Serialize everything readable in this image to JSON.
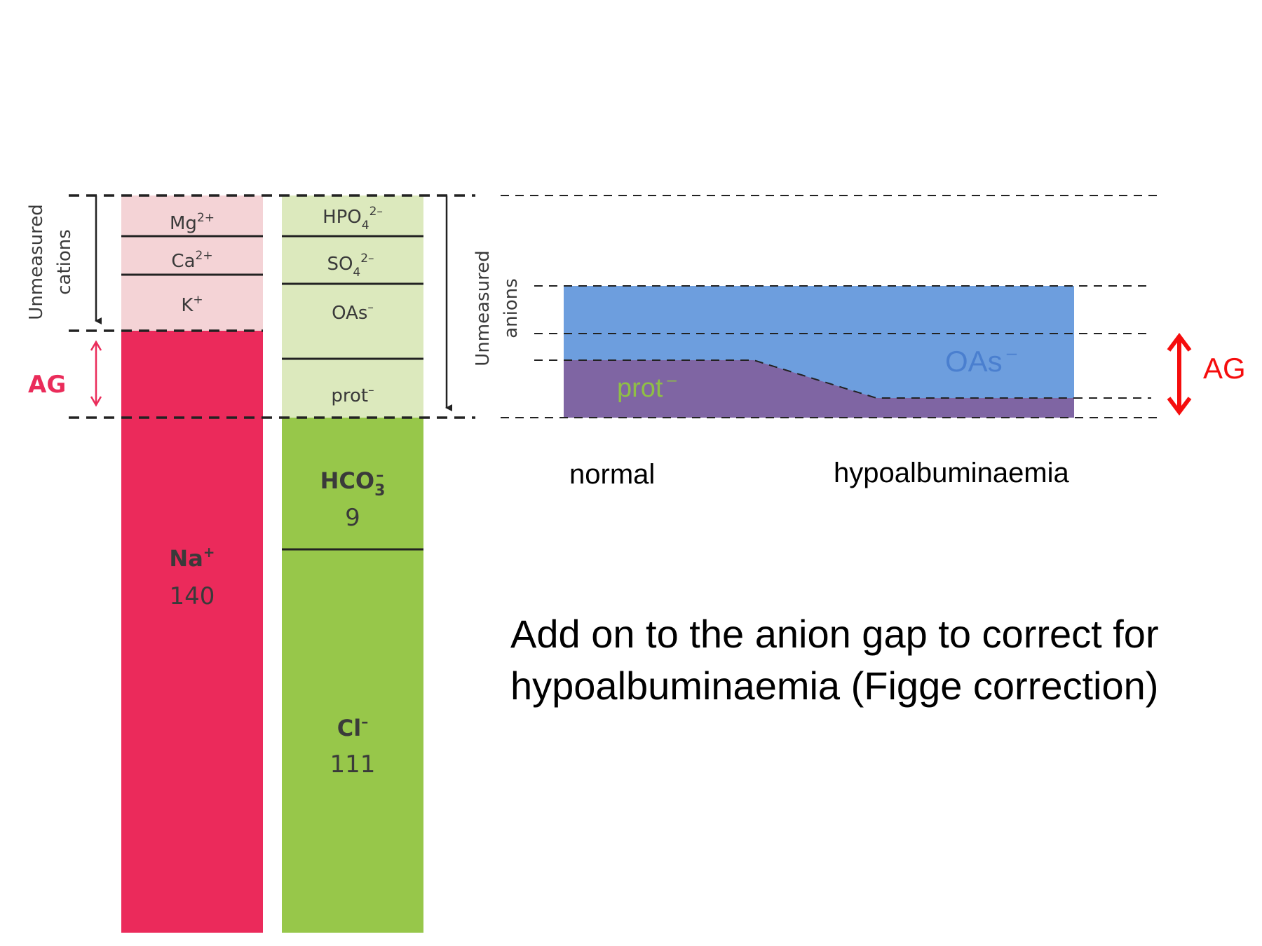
{
  "colors": {
    "cation_light": "#f4d3d6",
    "cation_main": "#eb2a5b",
    "anion_light": "#dce9bd",
    "anion_main": "#97c74a",
    "oas_blue": "#6d9ede",
    "prot_purple": "#7f65a3",
    "prot_label": "#8fbf45",
    "ag_red": "#f50d0d",
    "ag_left": "#ea2c5a"
  },
  "left_diagram": {
    "side_label_cations": [
      "Unmeasured",
      "cations"
    ],
    "side_label_anions": [
      "Unmeasured",
      "anions"
    ],
    "ag_label": "AG",
    "cations_column": [
      {
        "base": "Mg",
        "sup": "2+"
      },
      {
        "base": "Ca",
        "sup": "2+"
      },
      {
        "base": "K",
        "sup": "+"
      }
    ],
    "anions_column": [
      {
        "base": "HPO",
        "sub": "4",
        "sup": "2–"
      },
      {
        "base": "SO",
        "sub": "4",
        "sup": "2–"
      },
      {
        "base": "OAs",
        "sup": "–"
      },
      {
        "base": "prot",
        "sup": "–"
      }
    ],
    "na": {
      "base": "Na",
      "sup": "+",
      "value": "140"
    },
    "hco3": {
      "base": "HCO",
      "sub": "3",
      "sup": "–",
      "value": "9"
    },
    "cl": {
      "base": "Cl",
      "sup": "–",
      "value": "111"
    }
  },
  "right_diagram": {
    "oas_label": "OAs",
    "oas_sup": "–",
    "prot_label": "prot",
    "prot_sup": "–",
    "ag_label": "AG",
    "state_labels": [
      "normal",
      "hypoalbuminaemia"
    ]
  },
  "caption": {
    "line1": "Add on to the anion gap to correct for",
    "line2": "hypoalbuminaemia (Figge correction)"
  }
}
